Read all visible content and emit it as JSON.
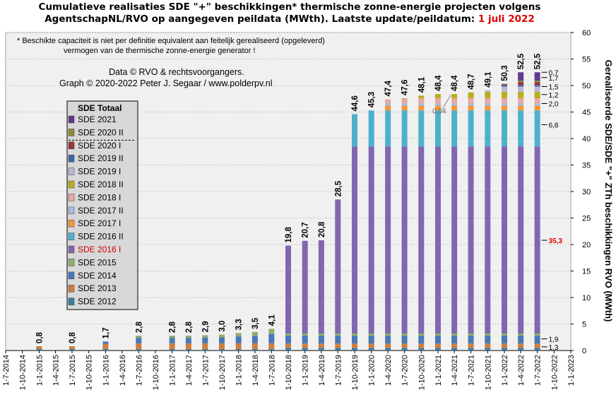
{
  "title": {
    "line1": "Cumulatieve realisaties SDE \"+\" beschikkingen*  thermische zonne-energie projecten volgens",
    "line2": "AgentschapNL/RVO  op aangegeven peildata (MWth).  Laatste update/peildatum:",
    "date": "1 juli 2022"
  },
  "note": {
    "line1": "* Beschikte capaciteit is niet per definitie equivalent aan feitelijk gerealiseerd (opgeleverd)",
    "line2": "vermogen van de thermische zonne-energie generator !"
  },
  "credit": {
    "line1": "Data © RVO & rechtsvoorgangers.",
    "line2": "Graph  © 2020-2022  Peter J. Segaar / www.polderpv.nl"
  },
  "legend": {
    "title": "SDE Totaal",
    "items": [
      {
        "label": "SDE 2021",
        "color": "#5e3a8c"
      },
      {
        "label": "SDE 2020 II",
        "color": "#8c8c3a"
      },
      {
        "label": "SDE 2020 I",
        "color": "#9c3434"
      },
      {
        "label": "SDE 2019 II",
        "color": "#3a66a8"
      },
      {
        "label": "SDE 2019 I",
        "color": "#c0b4d8"
      },
      {
        "label": "SDE 2018 II",
        "color": "#b4b01c"
      },
      {
        "label": "SDE 2018 I",
        "color": "#e8a8a4"
      },
      {
        "label": "SDE 2017 II",
        "color": "#a8bcde"
      },
      {
        "label": "SDE 2017 I",
        "color": "#f5963a"
      },
      {
        "label": "SDE 2016 II",
        "color": "#4fb0cc"
      },
      {
        "label": "SDE 2016 I",
        "color": "#8266b0",
        "highlight": true
      },
      {
        "label": "SDE 2015",
        "color": "#8fae6a"
      },
      {
        "label": "SDE 2014",
        "color": "#4a78b8"
      },
      {
        "label": "SDE 2013",
        "color": "#d07d3c"
      },
      {
        "label": "SDE 2012",
        "color": "#3c7ca2"
      }
    ]
  },
  "chart_data": {
    "type": "bar",
    "stacked": true,
    "ylabel": "Gerealiseerde SDE/SDE \"+\" ZTh beschikkingen RVO (MWth)",
    "ylim": [
      0,
      60
    ],
    "yticks": [
      0,
      5,
      10,
      15,
      20,
      25,
      30,
      35,
      40,
      45,
      50,
      55,
      60
    ],
    "grid": true,
    "legend_position": "left",
    "x_tick_labels": [
      "1-7-2014",
      "1-10-2014",
      "1-1-2015",
      "1-4-2015",
      "1-7-2015",
      "1-10-2015",
      "1-1-2016",
      "1-4-2016",
      "1-7-2016",
      "1-10-2016",
      "1-1-2017",
      "1-4-2017",
      "1-7-2017",
      "1-10-2017",
      "1-1-2018",
      "1-4-2018",
      "1-7-2018",
      "1-10-2018",
      "1-1-2019",
      "1-4-2019",
      "1-7-2019",
      "1-10-2019",
      "1-1-2020",
      "1-4-2020",
      "1-7-2020",
      "1-10-2020",
      "1-1-2021",
      "1-4-2021",
      "1-7-2021",
      "1-10-2021",
      "1-1-2022",
      "1-4-2022",
      "1-7-2022",
      "1-10-2022",
      "1-1-2023"
    ],
    "bars": [
      {
        "date": "2015-01-01",
        "total": "0,8"
      },
      {
        "date": "2015-07-01",
        "total": "0,8"
      },
      {
        "date": "2016-01-01",
        "total": "1,7"
      },
      {
        "date": "2016-07-01",
        "total": "2,8"
      },
      {
        "date": "2017-01-01",
        "total": "2,8"
      },
      {
        "date": "2017-04-01",
        "total": "2,8"
      },
      {
        "date": "2017-07-01",
        "total": "2,9"
      },
      {
        "date": "2017-10-01",
        "total": "3,0"
      },
      {
        "date": "2018-01-01",
        "total": "3,3"
      },
      {
        "date": "2018-04-01",
        "total": "3,5"
      },
      {
        "date": "2018-07-01",
        "total": "4,1"
      },
      {
        "date": "2018-10-01",
        "total": "19,8"
      },
      {
        "date": "2019-01-01",
        "total": "20,7"
      },
      {
        "date": "2019-04-01",
        "total": "20,8"
      },
      {
        "date": "2019-07-01",
        "total": "28,5"
      },
      {
        "date": "2019-10-01",
        "total": "44,6"
      },
      {
        "date": "2020-01-01",
        "total": "45,3"
      },
      {
        "date": "2020-04-01",
        "total": "47,4"
      },
      {
        "date": "2020-07-01",
        "total": "47,6"
      },
      {
        "date": "2020-10-01",
        "total": "48,1"
      },
      {
        "date": "2021-01-01",
        "total": "48,4"
      },
      {
        "date": "2021-04-01",
        "total": "48,4"
      },
      {
        "date": "2021-07-01",
        "total": "48,7"
      },
      {
        "date": "2021-10-01",
        "total": "49,1"
      },
      {
        "date": "2022-01-01",
        "total": "50,3"
      },
      {
        "date": "2022-04-01",
        "total": "52,5"
      },
      {
        "date": "2022-07-01",
        "total": "52,5"
      }
    ],
    "segments_order": [
      "SDE 2012",
      "SDE 2013",
      "SDE 2014",
      "SDE 2015",
      "SDE 2016 I",
      "SDE 2016 II",
      "SDE 2017 I",
      "SDE 2017 II",
      "SDE 2018 I",
      "SDE 2018 II",
      "SDE 2019 I",
      "SDE 2019 II",
      "SDE 2020 I",
      "SDE 2020 II",
      "SDE 2021"
    ],
    "series_last_bar_annotations": [
      {
        "label": "0,7",
        "value": 52.5
      },
      {
        "label": "1,7",
        "value": 51.5
      },
      {
        "label": "1,5",
        "value": 49.8
      },
      {
        "label": "1,2",
        "value": 48.3
      },
      {
        "label": "2,0",
        "value": 46.6
      },
      {
        "label": "6,8",
        "value": 42.6
      },
      {
        "label": "35,3",
        "value": 20.8,
        "highlight": true
      },
      {
        "label": "1,9",
        "value": 2.2
      },
      {
        "label": "1,3",
        "value": 0.7
      }
    ],
    "callout": {
      "label": "0,04",
      "date": "2021-01-01"
    }
  }
}
